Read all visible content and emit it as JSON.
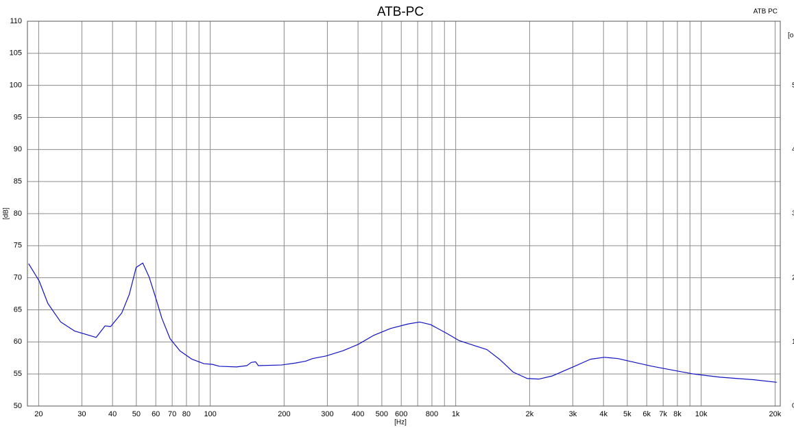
{
  "chart_data": {
    "type": "line",
    "title": "ATB-PC",
    "x_label": "[Hz]",
    "y_label": "[dB]",
    "y2_label": "[o",
    "log_x": true,
    "grid": true,
    "xlim": [
      18,
      21000
    ],
    "ylim": [
      50,
      110
    ],
    "y2lim": [
      0,
      6
    ],
    "xticks": [
      20,
      30,
      40,
      50,
      60,
      70,
      80,
      100,
      200,
      300,
      400,
      500,
      600,
      800,
      {
        "value": 1000,
        "label": "1k"
      },
      {
        "value": 2000,
        "label": "2k"
      },
      {
        "value": 3000,
        "label": "3k"
      },
      {
        "value": 4000,
        "label": "4k"
      },
      {
        "value": 5000,
        "label": "5k"
      },
      {
        "value": 6000,
        "label": "6k"
      },
      {
        "value": 7000,
        "label": "7k"
      },
      {
        "value": 8000,
        "label": "8k"
      },
      {
        "value": 10000,
        "label": "10k"
      },
      {
        "value": 20000,
        "label": "20k"
      }
    ],
    "xminor": [
      90,
      700,
      900,
      9000
    ],
    "yticks": [
      50,
      55,
      60,
      65,
      70,
      75,
      80,
      85,
      90,
      95,
      100,
      105,
      110
    ],
    "y2ticks": [
      0,
      1,
      2,
      3,
      4,
      5
    ],
    "x": [
      18.2,
      20.1,
      21.8,
      24.6,
      28.0,
      34.3,
      37.3,
      39.3,
      43.6,
      46.8,
      49.9,
      53.1,
      56.4,
      60.6,
      63.5,
      68.6,
      75.3,
      84.2,
      94.3,
      102,
      109,
      128,
      141,
      147,
      153,
      157,
      195,
      222,
      245,
      261,
      296,
      346,
      400,
      462,
      543,
      640,
      713,
      790,
      922,
      1033,
      1176,
      1340,
      1507,
      1713,
      1953,
      2179,
      2478,
      3010,
      3540,
      4030,
      4580,
      5370,
      6310,
      7650,
      9300,
      11940,
      16420,
      20300
    ],
    "series": [
      {
        "name": "ATB PC",
        "color": "#1010c0",
        "values": [
          72.2,
          69.5,
          66.0,
          63.1,
          61.7,
          60.7,
          62.5,
          62.4,
          64.5,
          67.4,
          71.6,
          72.3,
          70.1,
          66.3,
          63.7,
          60.5,
          58.6,
          57.3,
          56.6,
          56.5,
          56.2,
          56.1,
          56.3,
          56.8,
          56.9,
          56.3,
          56.4,
          56.7,
          57.0,
          57.4,
          57.8,
          58.6,
          59.6,
          61.0,
          62.1,
          62.8,
          63.1,
          62.7,
          61.3,
          60.2,
          59.5,
          58.8,
          57.3,
          55.3,
          54.3,
          54.2,
          54.7,
          56.1,
          57.3,
          57.6,
          57.4,
          56.8,
          56.2,
          55.6,
          55.0,
          54.5,
          54.1,
          53.7
        ]
      }
    ]
  }
}
